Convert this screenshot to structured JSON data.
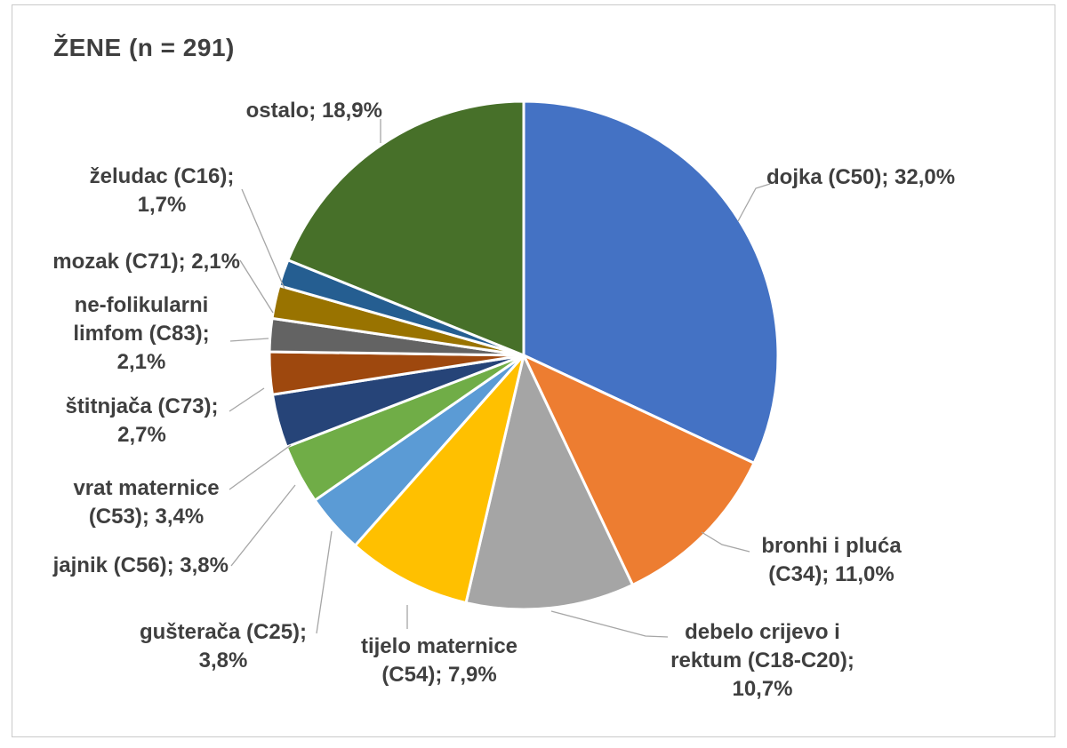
{
  "chart_data": {
    "type": "pie",
    "title": "ŽENE (n = 291)",
    "n": 291,
    "direction": "clockwise",
    "start_angle_deg": 0,
    "legend": "none",
    "data_labels": "outside-end with leader lines, format: category; value%",
    "slices": [
      {
        "key": "dojka-c50",
        "category": "dojka (C50)",
        "value": 32.0,
        "color": "#4472C4",
        "label": "dojka (C50); 32,0%"
      },
      {
        "key": "bronhi-i-pluca-c34",
        "category": "bronhi i pluća (C34)",
        "value": 11.0,
        "color": "#ED7D31",
        "label": "bronhi i pluća\n(C34); 11,0%"
      },
      {
        "key": "debelo-crijevo-i-rektum-c18-c20",
        "category": "debelo crijevo i rektum (C18-C20)",
        "value": 10.7,
        "color": "#A5A5A5",
        "label": "debelo crijevo i\nrektum (C18-C20);\n10,7%"
      },
      {
        "key": "tijelo-maternice-c54",
        "category": "tijelo maternice (C54)",
        "value": 7.9,
        "color": "#FFC000",
        "label": "tijelo maternice\n(C54); 7,9%"
      },
      {
        "key": "gusteraca-c25",
        "category": "gušterača (C25)",
        "value": 3.8,
        "color": "#5B9BD5",
        "label": "gušterača (C25);\n3,8%"
      },
      {
        "key": "jajnik-c56",
        "category": "jajnik (C56)",
        "value": 3.8,
        "color": "#70AD47",
        "label": "jajnik (C56); 3,8%"
      },
      {
        "key": "vrat-maternice-c53",
        "category": "vrat maternice (C53)",
        "value": 3.4,
        "color": "#264478",
        "label": "vrat maternice\n(C53); 3,4%"
      },
      {
        "key": "stitnjaca-c73",
        "category": "štitnjača (C73)",
        "value": 2.7,
        "color": "#9E480E",
        "label": "štitnjača (C73);\n2,7%"
      },
      {
        "key": "ne-folikularni-limfom-c83",
        "category": "ne-folikularni limfom (C83)",
        "value": 2.1,
        "color": "#636363",
        "label": "ne-folikularni\nlimfom (C83);\n2,1%"
      },
      {
        "key": "mozak-c71",
        "category": "mozak (C71)",
        "value": 2.1,
        "color": "#997300",
        "label": "mozak (C71); 2,1%"
      },
      {
        "key": "zeludac-c16",
        "category": "želudac (C16)",
        "value": 1.7,
        "color": "#255E91",
        "label": "želudac (C16);\n1,7%"
      },
      {
        "key": "ostalo",
        "category": "ostalo",
        "value": 18.9,
        "color": "#477029",
        "label": "ostalo; 18,9%"
      }
    ]
  },
  "style": {
    "text_color": "#3F3F3F",
    "leader_line_color": "#A6A6A6",
    "frame_border_color": "#C9C9C9",
    "background_color": "#FFFFFF"
  }
}
